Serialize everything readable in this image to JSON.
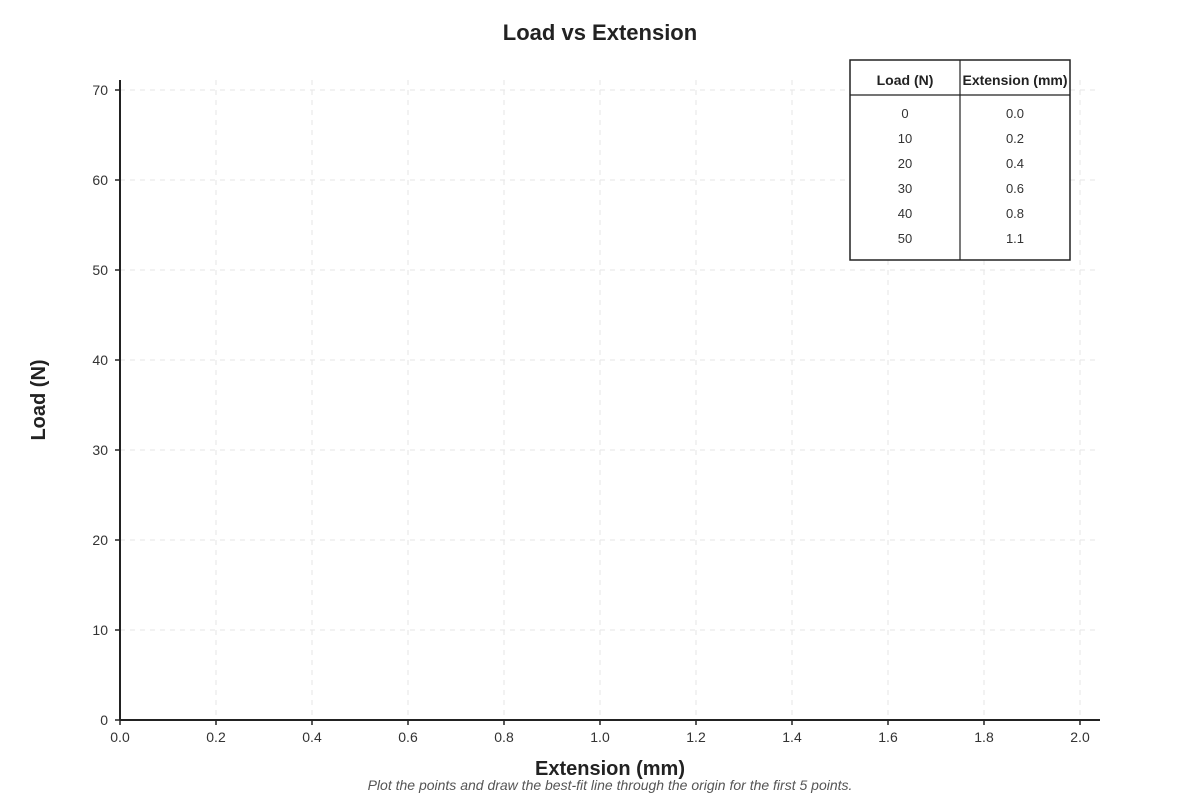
{
  "chart_data": {
    "type": "scatter",
    "title": "Load vs Extension",
    "xlabel": "Extension (mm)",
    "ylabel": "Load (N)",
    "xlim": [
      0,
      2.0
    ],
    "ylim": [
      0,
      70
    ],
    "x_ticks": [
      "0.0",
      "0.2",
      "0.4",
      "0.6",
      "0.8",
      "1.0",
      "1.2",
      "1.4",
      "1.6",
      "1.8",
      "2.0"
    ],
    "y_ticks": [
      "0",
      "10",
      "20",
      "30",
      "40",
      "50",
      "60",
      "70"
    ],
    "grid": true,
    "series": [],
    "table": {
      "headers": [
        "Load (N)",
        "Extension (mm)"
      ],
      "rows": [
        [
          "0",
          "0.0"
        ],
        [
          "10",
          "0.2"
        ],
        [
          "20",
          "0.4"
        ],
        [
          "30",
          "0.6"
        ],
        [
          "40",
          "0.8"
        ],
        [
          "50",
          "1.1"
        ]
      ],
      "placement": "top-right"
    },
    "instruction": "Plot the points and draw the best-fit line through the origin for the first 5 points."
  },
  "colors": {
    "axis": "#222222",
    "grid": "#e6e6e6",
    "text": "#222222"
  }
}
